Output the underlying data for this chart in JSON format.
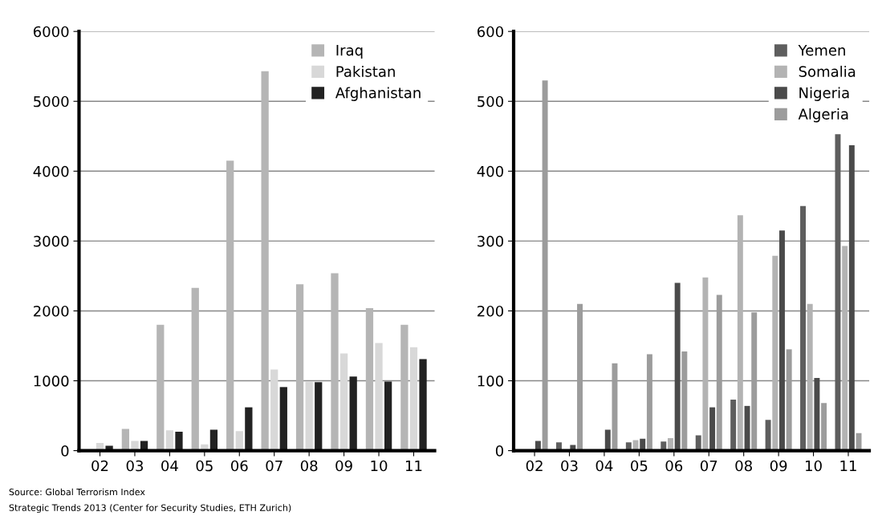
{
  "chart_data": [
    {
      "type": "bar",
      "categories": [
        "02",
        "03",
        "04",
        "05",
        "06",
        "07",
        "08",
        "09",
        "10",
        "11"
      ],
      "ylim": [
        0,
        6000
      ],
      "yticks": [
        0,
        1000,
        2000,
        3000,
        4000,
        5000,
        6000
      ],
      "grid": "y",
      "legend": "top right",
      "series": [
        {
          "name": "Iraq",
          "color": "#b5b5b5",
          "values": [
            0,
            310,
            1800,
            2330,
            4150,
            5430,
            2380,
            2540,
            2040,
            1800
          ]
        },
        {
          "name": "Pakistan",
          "color": "#d8d8d8",
          "values": [
            110,
            140,
            290,
            90,
            280,
            1160,
            990,
            1390,
            1540,
            1480
          ]
        },
        {
          "name": "Afghanistan",
          "color": "#222222",
          "values": [
            70,
            140,
            270,
            300,
            620,
            910,
            980,
            1060,
            990,
            1310
          ]
        }
      ],
      "annotations": [
        "Source: Global Terrorism Index",
        "Strategic Trends 2013 (Center for Security Studies, ETH Zurich)"
      ]
    },
    {
      "type": "bar",
      "categories": [
        "02",
        "03",
        "04",
        "05",
        "06",
        "07",
        "08",
        "09",
        "10",
        "11"
      ],
      "ylim": [
        0,
        600
      ],
      "yticks": [
        0,
        100,
        200,
        300,
        400,
        500,
        600
      ],
      "grid": "y",
      "legend": "top right",
      "series": [
        {
          "name": "Yemen",
          "color": "#5e5e5e",
          "values": [
            null,
            12,
            0,
            12,
            13,
            22,
            73,
            44,
            350,
            453
          ]
        },
        {
          "name": "Somalia",
          "color": "#b3b3b3",
          "values": [
            0,
            0,
            null,
            15,
            18,
            248,
            337,
            279,
            210,
            293
          ]
        },
        {
          "name": "Nigeria",
          "color": "#4a4a4a",
          "values": [
            14,
            8,
            30,
            17,
            240,
            62,
            64,
            315,
            104,
            437
          ]
        },
        {
          "name": "Algeria",
          "color": "#9c9c9c",
          "values": [
            530,
            210,
            125,
            138,
            142,
            223,
            198,
            145,
            68,
            25
          ]
        }
      ]
    }
  ]
}
